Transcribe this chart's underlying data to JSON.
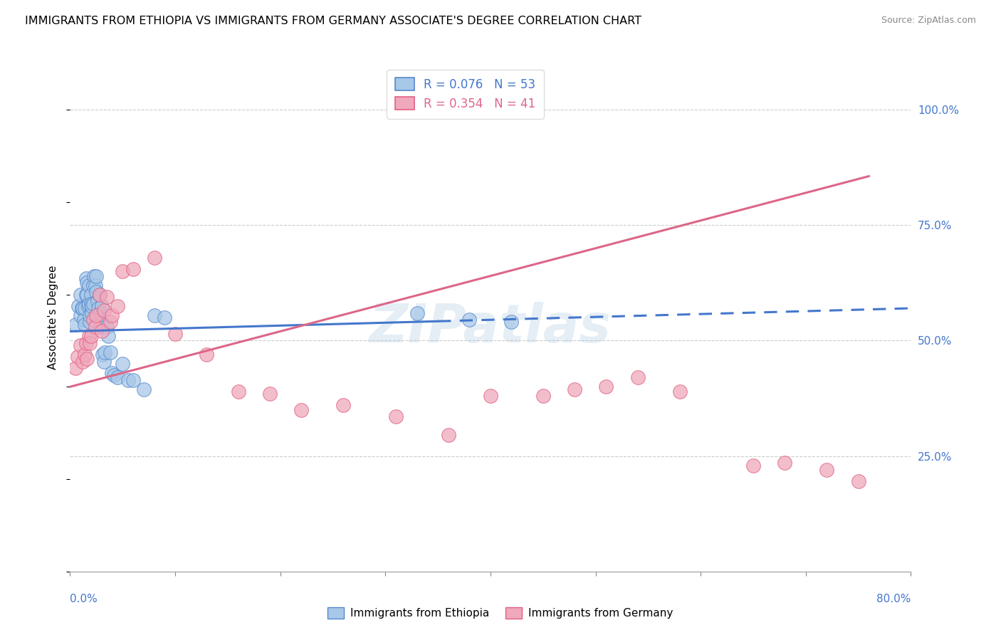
{
  "title": "IMMIGRANTS FROM ETHIOPIA VS IMMIGRANTS FROM GERMANY ASSOCIATE'S DEGREE CORRELATION CHART",
  "source": "Source: ZipAtlas.com",
  "ylabel": "Associate's Degree",
  "xlim": [
    0.0,
    0.8
  ],
  "ylim": [
    0.0,
    1.1
  ],
  "blue_color": "#a8c8e8",
  "pink_color": "#f0a8bc",
  "blue_edge_color": "#5588cc",
  "pink_edge_color": "#e06080",
  "blue_line_color": "#4477cc",
  "pink_line_color": "#dd6688",
  "watermark": "ZIPatlas",
  "ethiopia_x": [
    0.005,
    0.008,
    0.01,
    0.01,
    0.011,
    0.012,
    0.013,
    0.014,
    0.014,
    0.015,
    0.015,
    0.016,
    0.016,
    0.017,
    0.018,
    0.018,
    0.019,
    0.019,
    0.02,
    0.02,
    0.021,
    0.021,
    0.022,
    0.022,
    0.023,
    0.024,
    0.025,
    0.025,
    0.026,
    0.027,
    0.028,
    0.028,
    0.029,
    0.03,
    0.03,
    0.031,
    0.032,
    0.033,
    0.035,
    0.036,
    0.038,
    0.04,
    0.042,
    0.045,
    0.05,
    0.055,
    0.06,
    0.07,
    0.08,
    0.09,
    0.33,
    0.38,
    0.42
  ],
  "ethiopia_y": [
    0.535,
    0.575,
    0.6,
    0.555,
    0.57,
    0.57,
    0.545,
    0.535,
    0.57,
    0.635,
    0.6,
    0.6,
    0.625,
    0.575,
    0.62,
    0.58,
    0.54,
    0.555,
    0.6,
    0.58,
    0.56,
    0.575,
    0.58,
    0.62,
    0.64,
    0.62,
    0.64,
    0.605,
    0.585,
    0.57,
    0.56,
    0.6,
    0.53,
    0.54,
    0.575,
    0.47,
    0.455,
    0.475,
    0.53,
    0.51,
    0.475,
    0.43,
    0.425,
    0.42,
    0.45,
    0.415,
    0.415,
    0.395,
    0.555,
    0.55,
    0.56,
    0.545,
    0.54
  ],
  "germany_x": [
    0.005,
    0.007,
    0.01,
    0.012,
    0.014,
    0.015,
    0.016,
    0.018,
    0.019,
    0.02,
    0.022,
    0.024,
    0.025,
    0.028,
    0.03,
    0.032,
    0.035,
    0.038,
    0.04,
    0.045,
    0.05,
    0.06,
    0.08,
    0.1,
    0.13,
    0.16,
    0.19,
    0.22,
    0.26,
    0.31,
    0.36,
    0.4,
    0.45,
    0.48,
    0.51,
    0.54,
    0.58,
    0.65,
    0.68,
    0.72,
    0.75
  ],
  "germany_y": [
    0.44,
    0.465,
    0.49,
    0.455,
    0.47,
    0.495,
    0.46,
    0.51,
    0.495,
    0.51,
    0.545,
    0.53,
    0.555,
    0.6,
    0.52,
    0.565,
    0.595,
    0.54,
    0.555,
    0.575,
    0.65,
    0.655,
    0.68,
    0.515,
    0.47,
    0.39,
    0.385,
    0.35,
    0.36,
    0.335,
    0.295,
    0.38,
    0.38,
    0.395,
    0.4,
    0.42,
    0.39,
    0.23,
    0.235,
    0.22,
    0.195
  ]
}
